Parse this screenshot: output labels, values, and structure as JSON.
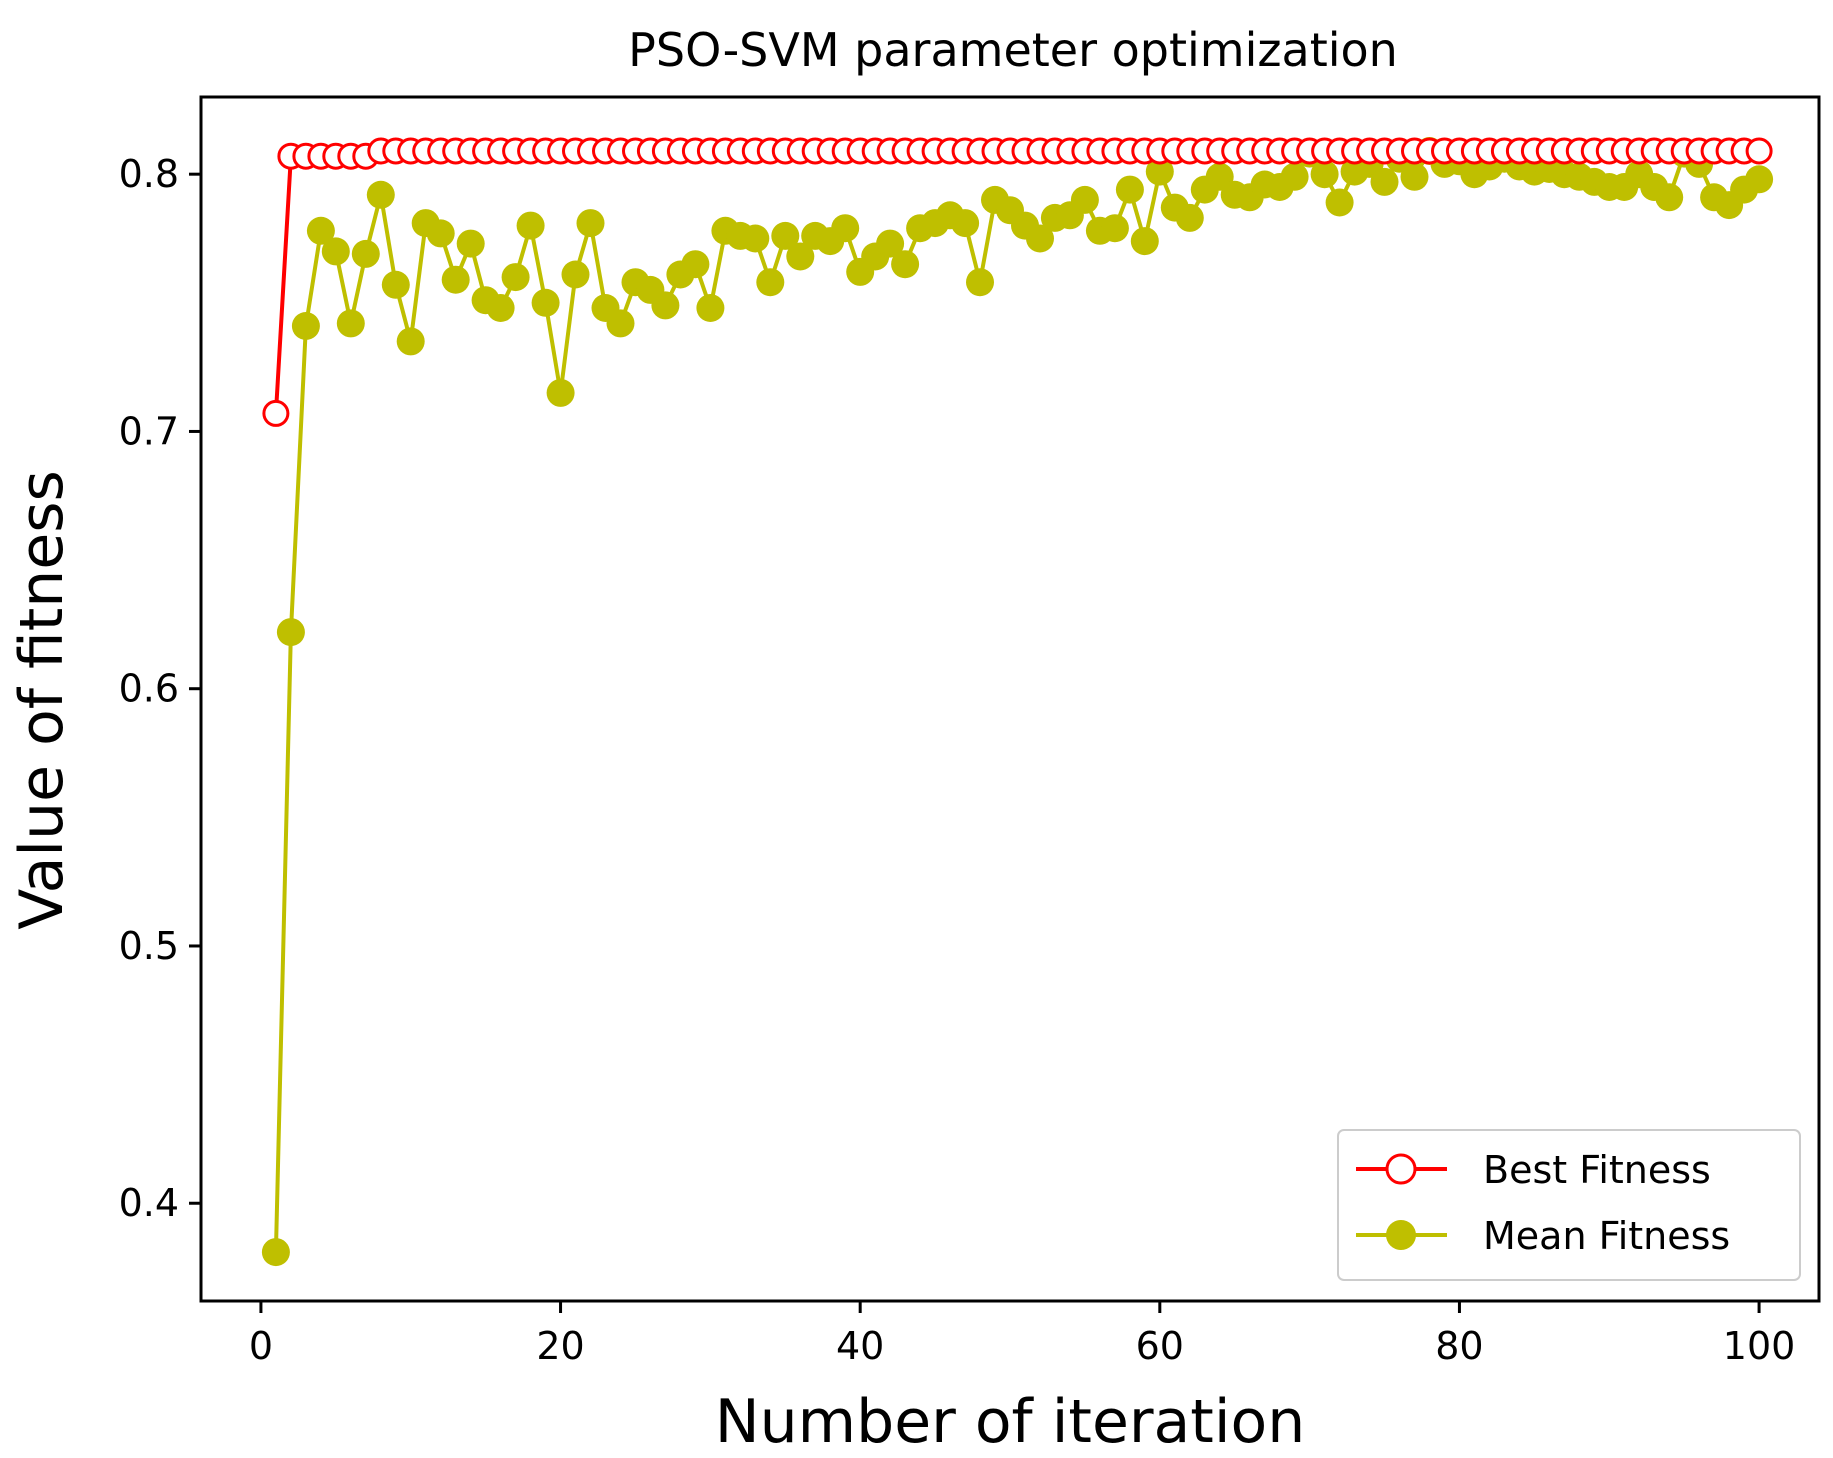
{
  "chart_data": {
    "type": "line",
    "title": "PSO-SVM parameter optimization",
    "xlabel": "Number of iteration",
    "ylabel": "Value of fitness",
    "xlim": [
      -4,
      104
    ],
    "ylim": [
      0.362,
      0.83
    ],
    "xticks": [
      0,
      20,
      40,
      60,
      80,
      100
    ],
    "yticks": [
      0.4,
      0.5,
      0.6,
      0.7,
      0.8
    ],
    "xtick_labels": [
      "0",
      "20",
      "40",
      "60",
      "80",
      "100"
    ],
    "ytick_labels": [
      "0.4",
      "0.5",
      "0.6",
      "0.7",
      "0.8"
    ],
    "grid": false,
    "legend_position": "bottom-right",
    "series": [
      {
        "name": "Best Fitness",
        "color": "#ff0000",
        "marker": "open-circle",
        "x": [
          1,
          2,
          3,
          4,
          5,
          6,
          7,
          8,
          9,
          10,
          11,
          12,
          13,
          14,
          15,
          16,
          17,
          18,
          19,
          20,
          21,
          22,
          23,
          24,
          25,
          26,
          27,
          28,
          29,
          30,
          31,
          32,
          33,
          34,
          35,
          36,
          37,
          38,
          39,
          40,
          41,
          42,
          43,
          44,
          45,
          46,
          47,
          48,
          49,
          50,
          51,
          52,
          53,
          54,
          55,
          56,
          57,
          58,
          59,
          60,
          61,
          62,
          63,
          64,
          65,
          66,
          67,
          68,
          69,
          70,
          71,
          72,
          73,
          74,
          75,
          76,
          77,
          78,
          79,
          80,
          81,
          82,
          83,
          84,
          85,
          86,
          87,
          88,
          89,
          90,
          91,
          92,
          93,
          94,
          95,
          96,
          97,
          98,
          99,
          100
        ],
        "values": [
          0.707,
          0.807,
          0.807,
          0.807,
          0.807,
          0.807,
          0.807,
          0.809,
          0.809,
          0.809,
          0.809,
          0.809,
          0.809,
          0.809,
          0.809,
          0.809,
          0.809,
          0.809,
          0.809,
          0.809,
          0.809,
          0.809,
          0.809,
          0.809,
          0.809,
          0.809,
          0.809,
          0.809,
          0.809,
          0.809,
          0.809,
          0.809,
          0.809,
          0.809,
          0.809,
          0.809,
          0.809,
          0.809,
          0.809,
          0.809,
          0.809,
          0.809,
          0.809,
          0.809,
          0.809,
          0.809,
          0.809,
          0.809,
          0.809,
          0.809,
          0.809,
          0.809,
          0.809,
          0.809,
          0.809,
          0.809,
          0.809,
          0.809,
          0.809,
          0.809,
          0.809,
          0.809,
          0.809,
          0.809,
          0.809,
          0.809,
          0.809,
          0.809,
          0.809,
          0.809,
          0.809,
          0.809,
          0.809,
          0.809,
          0.809,
          0.809,
          0.809,
          0.809,
          0.809,
          0.809,
          0.809,
          0.809,
          0.809,
          0.809,
          0.809,
          0.809,
          0.809,
          0.809,
          0.809,
          0.809,
          0.809,
          0.809,
          0.809,
          0.809,
          0.809,
          0.809,
          0.809,
          0.809,
          0.809,
          0.809
        ]
      },
      {
        "name": "Mean Fitness",
        "color": "#bfbf00",
        "marker": "filled-circle",
        "x": [
          1,
          2,
          3,
          4,
          5,
          6,
          7,
          8,
          9,
          10,
          11,
          12,
          13,
          14,
          15,
          16,
          17,
          18,
          19,
          20,
          21,
          22,
          23,
          24,
          25,
          26,
          27,
          28,
          29,
          30,
          31,
          32,
          33,
          34,
          35,
          36,
          37,
          38,
          39,
          40,
          41,
          42,
          43,
          44,
          45,
          46,
          47,
          48,
          49,
          50,
          51,
          52,
          53,
          54,
          55,
          56,
          57,
          58,
          59,
          60,
          61,
          62,
          63,
          64,
          65,
          66,
          67,
          68,
          69,
          70,
          71,
          72,
          73,
          74,
          75,
          76,
          77,
          78,
          79,
          80,
          81,
          82,
          83,
          84,
          85,
          86,
          87,
          88,
          89,
          90,
          91,
          92,
          93,
          94,
          95,
          96,
          97,
          98,
          99,
          100
        ],
        "values": [
          0.381,
          0.622,
          0.741,
          0.778,
          0.77,
          0.742,
          0.769,
          0.792,
          0.757,
          0.735,
          0.781,
          0.777,
          0.759,
          0.773,
          0.751,
          0.748,
          0.76,
          0.78,
          0.75,
          0.715,
          0.761,
          0.781,
          0.748,
          0.742,
          0.758,
          0.755,
          0.749,
          0.761,
          0.765,
          0.748,
          0.778,
          0.776,
          0.775,
          0.758,
          0.776,
          0.768,
          0.776,
          0.774,
          0.779,
          0.762,
          0.768,
          0.773,
          0.765,
          0.779,
          0.781,
          0.784,
          0.781,
          0.758,
          0.79,
          0.786,
          0.78,
          0.775,
          0.783,
          0.784,
          0.79,
          0.778,
          0.779,
          0.794,
          0.774,
          0.801,
          0.787,
          0.783,
          0.794,
          0.799,
          0.792,
          0.791,
          0.796,
          0.795,
          0.799,
          0.808,
          0.8,
          0.789,
          0.801,
          0.804,
          0.797,
          0.806,
          0.799,
          0.809,
          0.804,
          0.805,
          0.8,
          0.803,
          0.806,
          0.803,
          0.801,
          0.802,
          0.8,
          0.799,
          0.797,
          0.795,
          0.795,
          0.8,
          0.795,
          0.791,
          0.808,
          0.804,
          0.791,
          0.788,
          0.794,
          0.798
        ]
      }
    ]
  }
}
